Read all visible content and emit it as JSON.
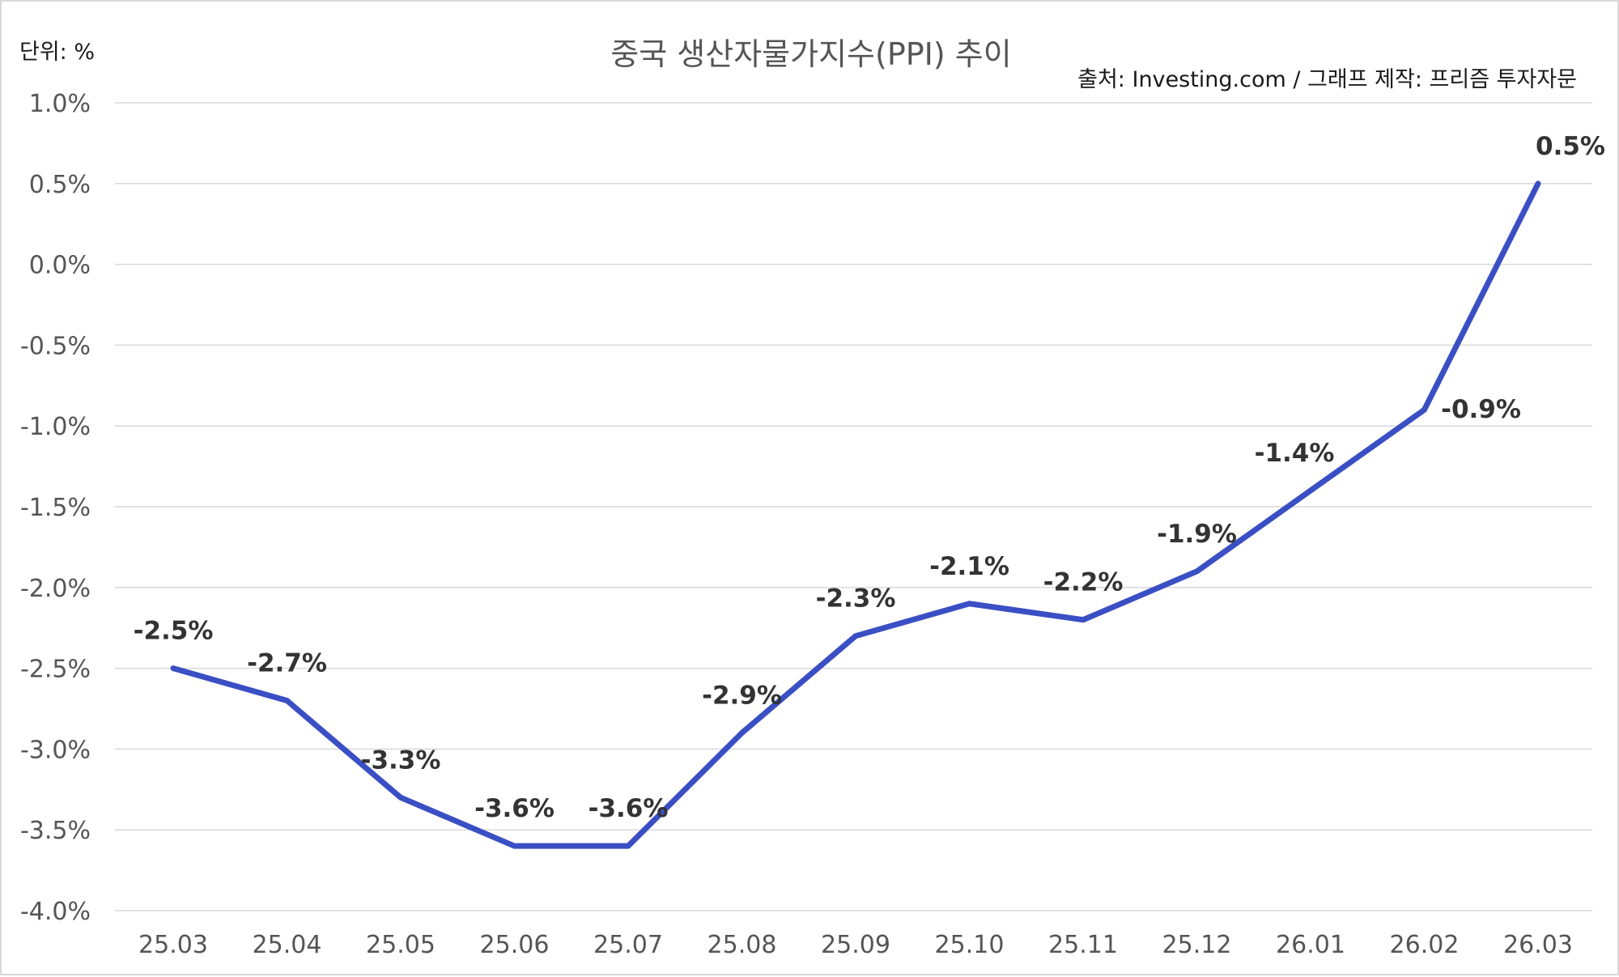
{
  "chart_data": {
    "type": "line",
    "title": "중국 생산자물가지수(PPI) 추이",
    "unit_label": "단위: %",
    "source_label": "출처: Investing.com / 그래프 제작: 프리즘 투자자문",
    "categories": [
      "25.03",
      "25.04",
      "25.05",
      "25.06",
      "25.07",
      "25.08",
      "25.09",
      "25.10",
      "25.11",
      "25.12",
      "26.01",
      "26.02",
      "26.03"
    ],
    "series": [
      {
        "values": [
          -2.5,
          -2.7,
          -3.3,
          -3.6,
          -3.6,
          -2.9,
          -2.3,
          -2.1,
          -2.2,
          -1.9,
          -1.4,
          -0.9,
          0.5
        ],
        "data_labels": [
          "-2.5%",
          "-2.7%",
          "-3.3%",
          "-3.6%",
          "-3.6%",
          "-2.9%",
          "-2.3%",
          "-2.1%",
          "-2.2%",
          "-1.9%",
          "-1.4%",
          "-0.9%",
          "0.5%"
        ],
        "color": "#3a4fc4"
      }
    ],
    "ylim": [
      -4.0,
      1.0
    ],
    "yticks": [
      1.0,
      0.5,
      0.0,
      -0.5,
      -1.0,
      -1.5,
      -2.0,
      -2.5,
      -3.0,
      -3.5,
      -4.0
    ],
    "ytick_labels": [
      "1.0%",
      "0.5%",
      "0.0%",
      "-0.5%",
      "-1.0%",
      "-1.5%",
      "-2.0%",
      "-2.5%",
      "-3.0%",
      "-3.5%",
      "-4.0%"
    ],
    "grid": true,
    "gridline_color": "#d9d9d9",
    "legend": "none"
  }
}
